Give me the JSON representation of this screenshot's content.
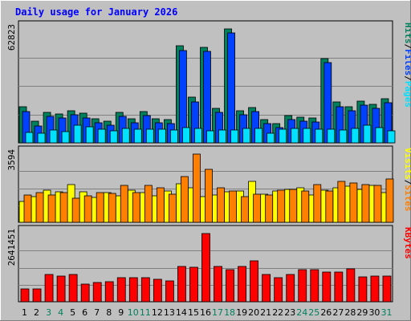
{
  "title": "Daily usage for January 2026",
  "colors": {
    "page_bg": "#C0C0C0",
    "plot_bg": "#C0C0C0",
    "title": "#0000FF",
    "hits": "#00805C",
    "files": "#0040FF",
    "pages": "#00E0FF",
    "visits": "#FFFF00",
    "sites": "#FF8000",
    "kbytes": "#FF0000",
    "weekend_label": "#00805C",
    "weekday_label": "#000000"
  },
  "chart_data": [
    {
      "type": "bar",
      "name": "hits-files-pages",
      "categories": [
        "1",
        "2",
        "3",
        "4",
        "5",
        "6",
        "7",
        "8",
        "9",
        "10",
        "11",
        "12",
        "13",
        "14",
        "15",
        "16",
        "17",
        "18",
        "19",
        "20",
        "21",
        "22",
        "23",
        "24",
        "25",
        "26",
        "27",
        "28",
        "29",
        "30",
        "31"
      ],
      "ymax_label": "62823",
      "ylim": [
        0,
        62823
      ],
      "legend": [
        {
          "text": "Pages",
          "color_key": "pages"
        },
        {
          "text": "/",
          "color_key": "weekday_label"
        },
        {
          "text": "Files",
          "color_key": "files"
        },
        {
          "text": "/",
          "color_key": "weekday_label"
        },
        {
          "text": "Hits",
          "color_key": "hits"
        }
      ],
      "series": [
        {
          "name": "Hits",
          "color_key": "hits",
          "values": [
            19800,
            11800,
            17000,
            15800,
            17600,
            16200,
            13400,
            12100,
            16700,
            13400,
            17400,
            13300,
            13000,
            53400,
            25000,
            52700,
            19200,
            62800,
            17600,
            19400,
            12900,
            10800,
            15000,
            14300,
            13800,
            46600,
            22400,
            19800,
            23100,
            21200,
            24300
          ]
        },
        {
          "name": "Files",
          "color_key": "files",
          "values": [
            17400,
            9500,
            14700,
            13500,
            15300,
            13900,
            11100,
            9800,
            14400,
            11100,
            15100,
            11000,
            10700,
            51000,
            22700,
            50400,
            16900,
            60500,
            15300,
            17100,
            10600,
            8500,
            12700,
            12000,
            11500,
            44300,
            20100,
            17500,
            20800,
            18900,
            22000
          ]
        },
        {
          "name": "Pages",
          "color_key": "pages",
          "values": [
            5900,
            5500,
            7000,
            6400,
            9700,
            8900,
            7600,
            6800,
            7900,
            7400,
            7700,
            7300,
            6900,
            8400,
            7800,
            6800,
            6900,
            6900,
            7800,
            8100,
            5300,
            7300,
            7800,
            8000,
            7600,
            7400,
            7200,
            8100,
            9700,
            8400,
            6600
          ]
        }
      ]
    },
    {
      "type": "bar",
      "name": "visits-sites",
      "categories": [
        "1",
        "2",
        "3",
        "4",
        "5",
        "6",
        "7",
        "8",
        "9",
        "10",
        "11",
        "12",
        "13",
        "14",
        "15",
        "16",
        "17",
        "18",
        "19",
        "20",
        "21",
        "22",
        "23",
        "24",
        "25",
        "26",
        "27",
        "28",
        "29",
        "30",
        "31"
      ],
      "ymax_label": "3594",
      "ylim": [
        0,
        3594
      ],
      "legend": [
        {
          "text": "Sites",
          "color_key": "sites"
        },
        {
          "text": "/",
          "color_key": "weekday_label"
        },
        {
          "text": "Visits",
          "color_key": "visits"
        }
      ],
      "series": [
        {
          "name": "Visits",
          "color_key": "visits",
          "values": [
            1100,
            1350,
            1700,
            1600,
            2000,
            1600,
            1300,
            1550,
            1400,
            1700,
            1550,
            1400,
            1650,
            2050,
            1800,
            1350,
            1450,
            1600,
            1650,
            2150,
            1500,
            1650,
            1750,
            1800,
            1450,
            1700,
            1800,
            1900,
            1750,
            1950,
            1550
          ]
        },
        {
          "name": "Sites",
          "color_key": "sites",
          "values": [
            1440,
            1570,
            1440,
            1560,
            1280,
            1380,
            1560,
            1530,
            1930,
            1550,
            1930,
            1800,
            1490,
            2400,
            3594,
            2780,
            1810,
            1630,
            1350,
            1500,
            1420,
            1700,
            1750,
            1660,
            1970,
            1650,
            2170,
            2070,
            2000,
            1930,
            2300
          ]
        }
      ]
    },
    {
      "type": "bar",
      "name": "kbytes",
      "categories": [
        "1",
        "2",
        "3",
        "4",
        "5",
        "6",
        "7",
        "8",
        "9",
        "10",
        "11",
        "12",
        "13",
        "14",
        "15",
        "16",
        "17",
        "18",
        "19",
        "20",
        "21",
        "22",
        "23",
        "24",
        "25",
        "26",
        "27",
        "28",
        "29",
        "30",
        "31"
      ],
      "ymax_label": "2641451",
      "ylim": [
        0,
        2641451
      ],
      "legend": [
        {
          "text": "KBytes",
          "color_key": "kbytes"
        }
      ],
      "series": [
        {
          "name": "KBytes",
          "color_key": "kbytes",
          "values": [
            500000,
            500000,
            1060000,
            990000,
            1070000,
            670000,
            760000,
            790000,
            930000,
            930000,
            930000,
            880000,
            820000,
            1360000,
            1330000,
            2641451,
            1360000,
            1240000,
            1360000,
            1580000,
            1060000,
            920000,
            1060000,
            1250000,
            1250000,
            1150000,
            1150000,
            1280000,
            960000,
            990000,
            990000
          ]
        }
      ]
    }
  ],
  "weekend_days": [
    3,
    4,
    10,
    11,
    17,
    18,
    24,
    25,
    31
  ]
}
